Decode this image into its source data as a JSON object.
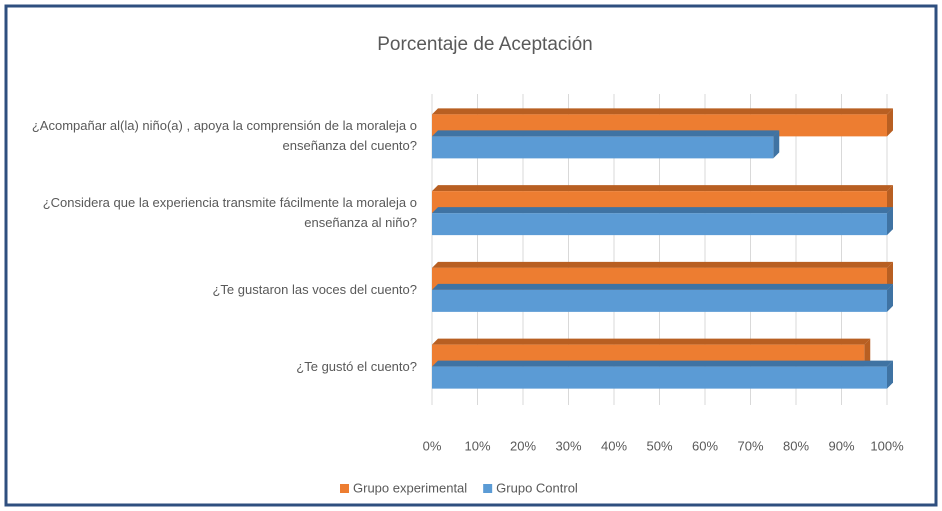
{
  "chart_data": {
    "type": "barh",
    "title": "Porcentaje de Aceptación",
    "categories": [
      "¿Acompañar al(la) niño(a) , apoya la comprensión de la moraleja o enseñanza del cuento?",
      "¿Considera que la experiencia transmite fácilmente la moraleja o enseñanza al niño?",
      "¿Te gustaron las voces del cuento?",
      "¿Te gustó el cuento?"
    ],
    "series": [
      {
        "name": "Grupo experimental",
        "color": "#ed7d31",
        "values": [
          100,
          100,
          100,
          95
        ]
      },
      {
        "name": "Grupo Control",
        "color": "#5b9bd5",
        "values": [
          75,
          100,
          100,
          100
        ]
      }
    ],
    "xlim": [
      0,
      100
    ],
    "xticks": [
      {
        "value": 0,
        "label": "0%"
      },
      {
        "value": 10,
        "label": "10%"
      },
      {
        "value": 20,
        "label": "20%"
      },
      {
        "value": 30,
        "label": "30%"
      },
      {
        "value": 40,
        "label": "40%"
      },
      {
        "value": 50,
        "label": "50%"
      },
      {
        "value": 60,
        "label": "60%"
      },
      {
        "value": 70,
        "label": "70%"
      },
      {
        "value": 80,
        "label": "80%"
      },
      {
        "value": 90,
        "label": "90%"
      },
      {
        "value": 100,
        "label": "100%"
      }
    ],
    "grid": true,
    "legend": "bottom"
  }
}
